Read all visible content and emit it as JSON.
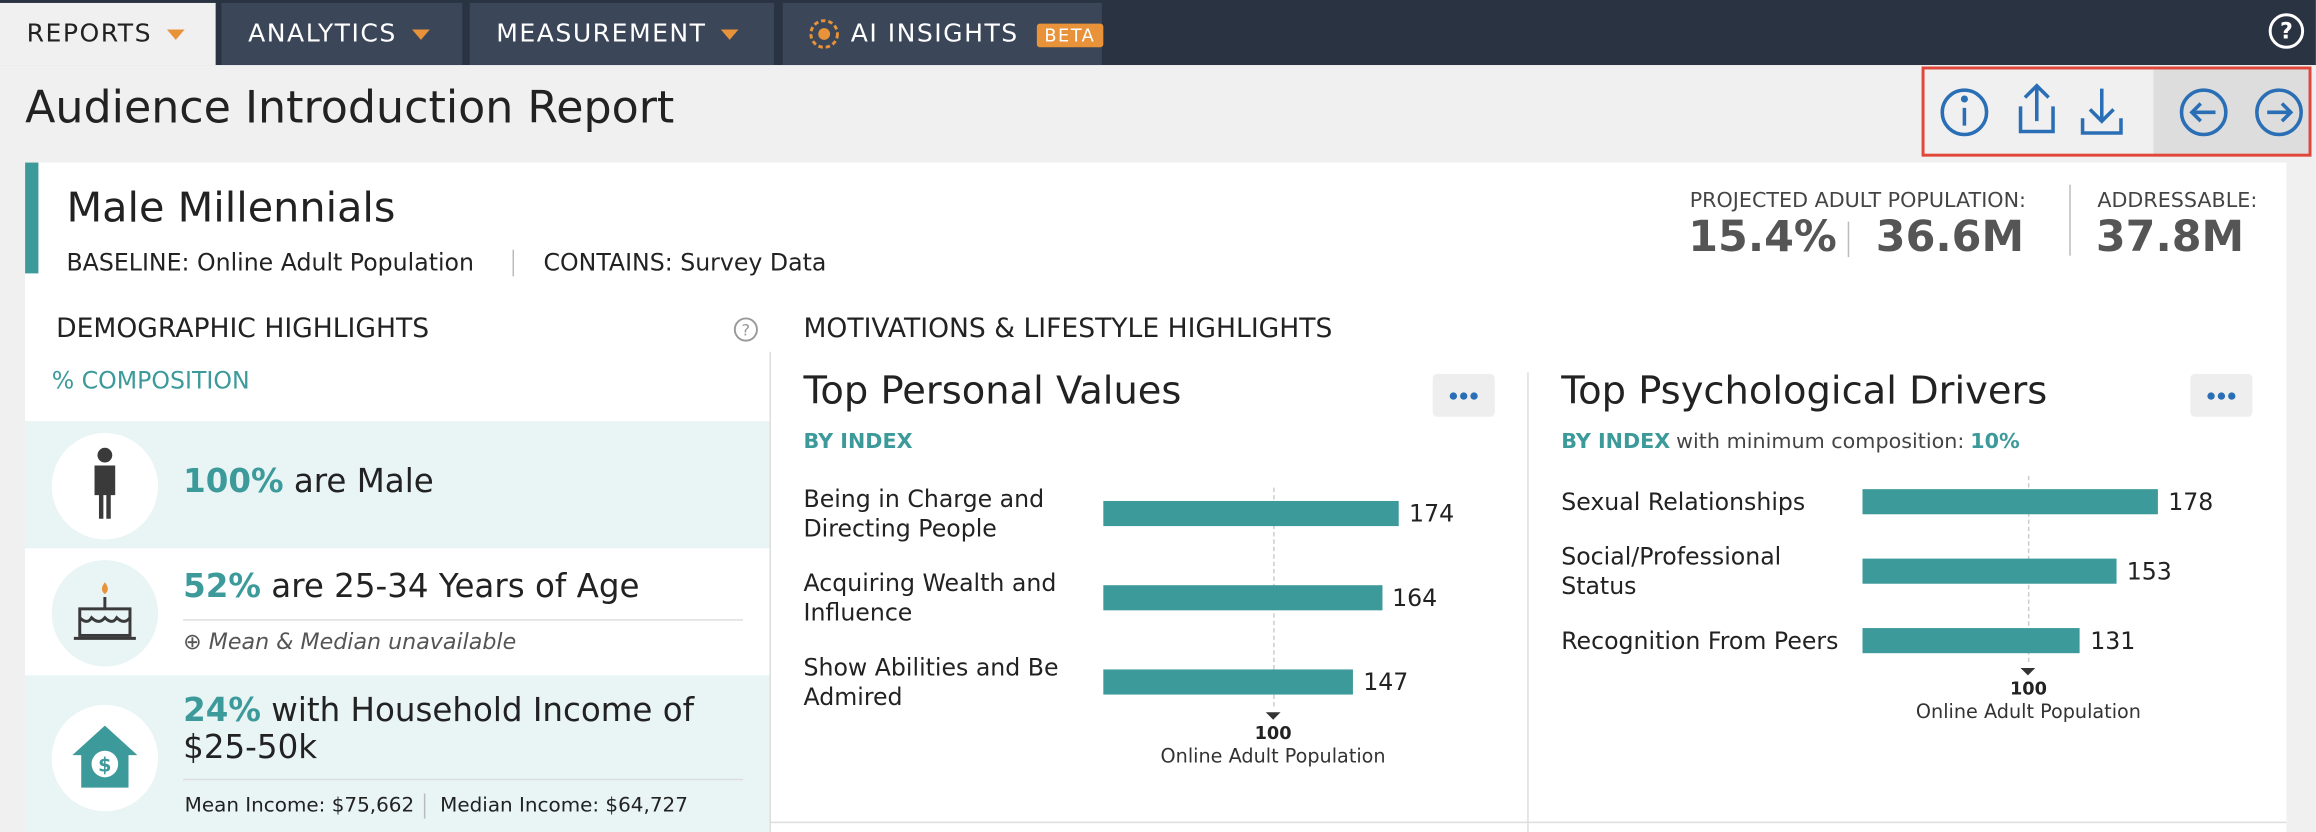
{
  "nav": {
    "tabs": [
      "REPORTS",
      "ANALYTICS",
      "MEASUREMENT",
      "AI INSIGHTS"
    ],
    "beta": "BETA"
  },
  "header": {
    "title": "Audience Introduction Report"
  },
  "audience": {
    "name": "Male Millennials",
    "baseline": "BASELINE: Online Adult Population",
    "contains": "CONTAINS: Survey Data",
    "projected_label": "PROJECTED ADULT POPULATION:",
    "projected_pct": "15.4%",
    "projected_count": "36.6M",
    "addressable_label": "ADDRESSABLE:",
    "addressable": "37.8M"
  },
  "demographics": {
    "title": "DEMOGRAPHIC HIGHLIGHTS",
    "subtitle": "% COMPOSITION",
    "items": [
      {
        "value": "100%",
        "text": "are Male"
      },
      {
        "value": "52%",
        "text": "are 25-34 Years of Age",
        "note": "Mean & Median unavailable"
      },
      {
        "value": "24%",
        "text": "with Household Income of $25-50k",
        "mean": "Mean Income: $75,662",
        "median": "Median Income: $64,727"
      }
    ]
  },
  "motivations": {
    "title": "MOTIVATIONS & LIFESTYLE HIGHLIGHTS"
  },
  "chart_data": [
    {
      "type": "bar",
      "orientation": "horizontal",
      "title": "Top Personal Values",
      "subtitle": "BY INDEX",
      "categories": [
        "Being in Charge and Directing People",
        "Acquiring Wealth and Influence",
        "Show Abilities and Be Admired"
      ],
      "values": [
        174,
        164,
        147
      ],
      "color": "#3d9a9b",
      "xlim": [
        0,
        174
      ],
      "xticks": [
        100
      ],
      "reference_label": "Online Adult Population"
    },
    {
      "type": "bar",
      "orientation": "horizontal",
      "title": "Top Psychological Drivers",
      "subtitle": "BY INDEX",
      "subtitle_note": "with minimum composition:",
      "subtitle_value": "10%",
      "categories": [
        "Sexual Relationships",
        "Social/Professional Status",
        "Recognition From Peers"
      ],
      "values": [
        178,
        153,
        131
      ],
      "color": "#3d9a9b",
      "xlim": [
        0,
        178
      ],
      "xticks": [
        100
      ],
      "reference_label": "Online Adult Population"
    }
  ]
}
